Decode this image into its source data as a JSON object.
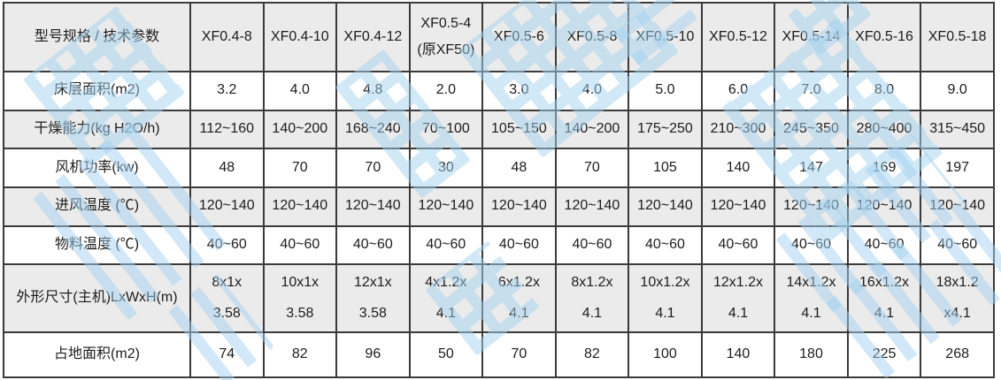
{
  "colors": {
    "background": "#ffffff",
    "row_shade": "#ebebeb",
    "border": "#3a3a3a",
    "text": "#1c1c1c",
    "watermark": "#a5d2f0"
  },
  "table": {
    "corner_label": "型号规格 / 技术参数",
    "columns": [
      "XF0.4-8",
      "XF0.4-10",
      "XF0.4-12",
      "XF0.5-4\n(原XF50)",
      "XF0.5-6",
      "XF0.5-8",
      "XF0.5-10",
      "XF0.5-12",
      "XF0.5-14",
      "XF0.5-16",
      "XF0.5-18"
    ],
    "rows": [
      {
        "label": "床层面积(m2)",
        "values": [
          "3.2",
          "4.0",
          "4.8",
          "2.0",
          "3.0",
          "4.0",
          "5.0",
          "6.0",
          "7.0",
          "8.0",
          "9.0"
        ]
      },
      {
        "label": "干燥能力(kg H2O/h)",
        "values": [
          "112~160",
          "140~200",
          "168~240",
          "70~100",
          "105~150",
          "140~200",
          "175~250",
          "210~300",
          "245~350",
          "280~400",
          "315~450"
        ]
      },
      {
        "label": "风机功率(kw)",
        "values": [
          "48",
          "70",
          "70",
          "30",
          "48",
          "70",
          "105",
          "140",
          "147",
          "169",
          "197"
        ]
      },
      {
        "label": "进风温度 (℃)",
        "values": [
          "120~140",
          "120~140",
          "120~140",
          "120~140",
          "120~140",
          "120~140",
          "120~140",
          "120~140",
          "120~140",
          "120~140",
          "120~140"
        ]
      },
      {
        "label": "物料温度 (℃)",
        "values": [
          "40~60",
          "40~60",
          "40~60",
          "40~60",
          "40~60",
          "40~60",
          "40~60",
          "40~60",
          "40~60",
          "40~60",
          "40~60"
        ]
      },
      {
        "label": "外形尺寸(主机)LxWxH(m)",
        "values": [
          "8x1x\n3.58",
          "10x1x\n3.58",
          "12x1x\n3.58",
          "4x1.2x\n4.1",
          "6x1.2x\n4.1",
          "8x1.2x\n4.1",
          "10x1.2x\n4.1",
          "12x1.2x\n4.1",
          "14x1.2x\n4.1",
          "16x1.2x\n4.1",
          "18x1.2\nx4.1"
        ]
      },
      {
        "label": "占地面积(m2)",
        "values": [
          "74",
          "82",
          "96",
          "50",
          "70",
          "82",
          "100",
          "140",
          "180",
          "225",
          "268"
        ]
      }
    ]
  }
}
